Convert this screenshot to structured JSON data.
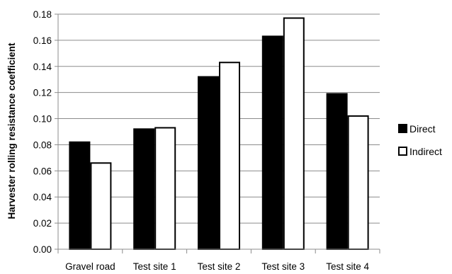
{
  "chart_data": {
    "type": "bar",
    "title": "",
    "xlabel": "",
    "ylabel": "Harvester rolling resistance coefficient",
    "categories": [
      "Gravel road",
      "Test site 1",
      "Test site 2",
      "Test site 3",
      "Test site 4"
    ],
    "series": [
      {
        "name": "Direct",
        "values": [
          0.082,
          0.092,
          0.132,
          0.163,
          0.119
        ],
        "color": "#000000"
      },
      {
        "name": "Indirect",
        "values": [
          0.066,
          0.093,
          0.143,
          0.177,
          0.102
        ],
        "color": "#ffffff"
      }
    ],
    "ylim": [
      0,
      0.18
    ],
    "yticks": [
      "0.00",
      "0.02",
      "0.04",
      "0.06",
      "0.08",
      "0.10",
      "0.12",
      "0.14",
      "0.16",
      "0.18"
    ],
    "grid": true,
    "legend_position": "right"
  }
}
